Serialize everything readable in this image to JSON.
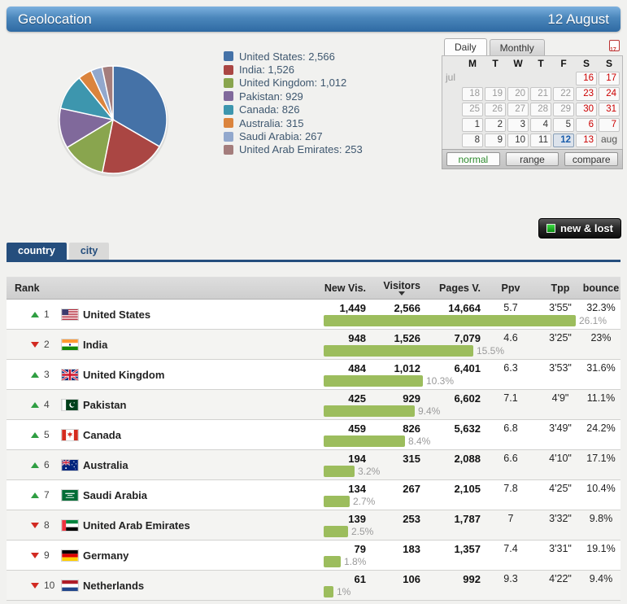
{
  "header": {
    "title": "Geolocation",
    "date": "12 August"
  },
  "chart_data": {
    "type": "pie",
    "title": "",
    "legend_position": "right",
    "series": [
      {
        "name": "United States",
        "value": 2566,
        "label": "United States: 2,566",
        "color": "#4572A7"
      },
      {
        "name": "India",
        "value": 1526,
        "label": "India: 1,526",
        "color": "#AA4643"
      },
      {
        "name": "United Kingdom",
        "value": 1012,
        "label": "United Kingdom: 1,012",
        "color": "#89A54E"
      },
      {
        "name": "Pakistan",
        "value": 929,
        "label": "Pakistan: 929",
        "color": "#80699B"
      },
      {
        "name": "Canada",
        "value": 826,
        "label": "Canada: 826",
        "color": "#3D96AE"
      },
      {
        "name": "Australia",
        "value": 315,
        "label": "Australia: 315",
        "color": "#DB843D"
      },
      {
        "name": "Saudi Arabia",
        "value": 267,
        "label": "Saudi Arabia: 267",
        "color": "#92A8CD"
      },
      {
        "name": "United Arab Emirates",
        "value": 253,
        "label": "United Arab Emirates: 253",
        "color": "#A47D7C"
      }
    ]
  },
  "calendar": {
    "tabs": [
      {
        "label": "Daily",
        "active": true
      },
      {
        "label": "Monthly",
        "active": false
      }
    ],
    "icon_day": "17",
    "day_headers": [
      "M",
      "T",
      "W",
      "T",
      "F",
      "S",
      "S"
    ],
    "left_month_label": "jul",
    "weeks": [
      [
        null,
        null,
        null,
        null,
        null,
        {
          "day": "16",
          "state": "weekend"
        },
        {
          "day": "17",
          "state": "weekend"
        }
      ],
      [
        {
          "day": "18",
          "state": "muted"
        },
        {
          "day": "19",
          "state": "muted"
        },
        {
          "day": "20",
          "state": "muted"
        },
        {
          "day": "21",
          "state": "muted"
        },
        {
          "day": "22",
          "state": "muted"
        },
        {
          "day": "23",
          "state": "weekend"
        },
        {
          "day": "24",
          "state": "weekend"
        }
      ],
      [
        {
          "day": "25",
          "state": "muted"
        },
        {
          "day": "26",
          "state": "muted"
        },
        {
          "day": "27",
          "state": "muted"
        },
        {
          "day": "28",
          "state": "muted"
        },
        {
          "day": "29",
          "state": "muted"
        },
        {
          "day": "30",
          "state": "weekend"
        },
        {
          "day": "31",
          "state": "weekend"
        }
      ],
      [
        {
          "day": "1",
          "state": "normal"
        },
        {
          "day": "2",
          "state": "normal"
        },
        {
          "day": "3",
          "state": "normal"
        },
        {
          "day": "4",
          "state": "normal"
        },
        {
          "day": "5",
          "state": "normal"
        },
        {
          "day": "6",
          "state": "weekend"
        },
        {
          "day": "7",
          "state": "weekend"
        }
      ],
      [
        {
          "day": "8",
          "state": "normal"
        },
        {
          "day": "9",
          "state": "normal"
        },
        {
          "day": "10",
          "state": "normal"
        },
        {
          "day": "11",
          "state": "normal"
        },
        {
          "day": "12",
          "state": "selected"
        },
        {
          "day": "13",
          "state": "weekend"
        },
        {
          "month_label": "aug"
        }
      ]
    ],
    "buttons": [
      {
        "label": "normal",
        "active": true
      },
      {
        "label": "range",
        "active": false
      },
      {
        "label": "compare",
        "active": false
      }
    ]
  },
  "new_lost": {
    "label": "new & lost"
  },
  "section_tabs": [
    {
      "label": "country",
      "active": true
    },
    {
      "label": "city",
      "active": false
    }
  ],
  "table": {
    "columns": [
      {
        "label": "Rank"
      },
      {
        "label": "New Vis."
      },
      {
        "label": "Visitors",
        "sorted": true
      },
      {
        "label": "Pages V."
      },
      {
        "label": "Ppv"
      },
      {
        "label": "Tpp"
      },
      {
        "label": "bounce"
      }
    ],
    "bar_color": "#9CBD5D",
    "rows": [
      {
        "rank": "1",
        "trend": "up",
        "flag": "us",
        "country": "United States",
        "new_vis": "1,449",
        "visitors": "2,566",
        "pages_v": "14,664",
        "ppv": "5.7",
        "tpp": "3'55\"",
        "bounce": "32.3%",
        "bar_pct": 26.1,
        "bar_label": "26.1%"
      },
      {
        "rank": "2",
        "trend": "down",
        "flag": "in",
        "country": "India",
        "new_vis": "948",
        "visitors": "1,526",
        "pages_v": "7,079",
        "ppv": "4.6",
        "tpp": "3'25\"",
        "bounce": "23%",
        "bar_pct": 15.5,
        "bar_label": "15.5%"
      },
      {
        "rank": "3",
        "trend": "up",
        "flag": "gb",
        "country": "United Kingdom",
        "new_vis": "484",
        "visitors": "1,012",
        "pages_v": "6,401",
        "ppv": "6.3",
        "tpp": "3'53\"",
        "bounce": "31.6%",
        "bar_pct": 10.3,
        "bar_label": "10.3%"
      },
      {
        "rank": "4",
        "trend": "up",
        "flag": "pk",
        "country": "Pakistan",
        "new_vis": "425",
        "visitors": "929",
        "pages_v": "6,602",
        "ppv": "7.1",
        "tpp": "4'9\"",
        "bounce": "11.1%",
        "bar_pct": 9.4,
        "bar_label": "9.4%"
      },
      {
        "rank": "5",
        "trend": "up",
        "flag": "ca",
        "country": "Canada",
        "new_vis": "459",
        "visitors": "826",
        "pages_v": "5,632",
        "ppv": "6.8",
        "tpp": "3'49\"",
        "bounce": "24.2%",
        "bar_pct": 8.4,
        "bar_label": "8.4%"
      },
      {
        "rank": "6",
        "trend": "up",
        "flag": "au",
        "country": "Australia",
        "new_vis": "194",
        "visitors": "315",
        "pages_v": "2,088",
        "ppv": "6.6",
        "tpp": "4'10\"",
        "bounce": "17.1%",
        "bar_pct": 3.2,
        "bar_label": "3.2%"
      },
      {
        "rank": "7",
        "trend": "up",
        "flag": "sa",
        "country": "Saudi Arabia",
        "new_vis": "134",
        "visitors": "267",
        "pages_v": "2,105",
        "ppv": "7.8",
        "tpp": "4'25\"",
        "bounce": "10.4%",
        "bar_pct": 2.7,
        "bar_label": "2.7%"
      },
      {
        "rank": "8",
        "trend": "down",
        "flag": "ae",
        "country": "United Arab Emirates",
        "new_vis": "139",
        "visitors": "253",
        "pages_v": "1,787",
        "ppv": "7",
        "tpp": "3'32\"",
        "bounce": "9.8%",
        "bar_pct": 2.5,
        "bar_label": "2.5%"
      },
      {
        "rank": "9",
        "trend": "down",
        "flag": "de",
        "country": "Germany",
        "new_vis": "79",
        "visitors": "183",
        "pages_v": "1,357",
        "ppv": "7.4",
        "tpp": "3'31\"",
        "bounce": "19.1%",
        "bar_pct": 1.8,
        "bar_label": "1.8%"
      },
      {
        "rank": "10",
        "trend": "down",
        "flag": "nl",
        "country": "Netherlands",
        "new_vis": "61",
        "visitors": "106",
        "pages_v": "992",
        "ppv": "9.3",
        "tpp": "4'22\"",
        "bounce": "9.4%",
        "bar_pct": 1,
        "bar_label": "1%"
      }
    ]
  }
}
